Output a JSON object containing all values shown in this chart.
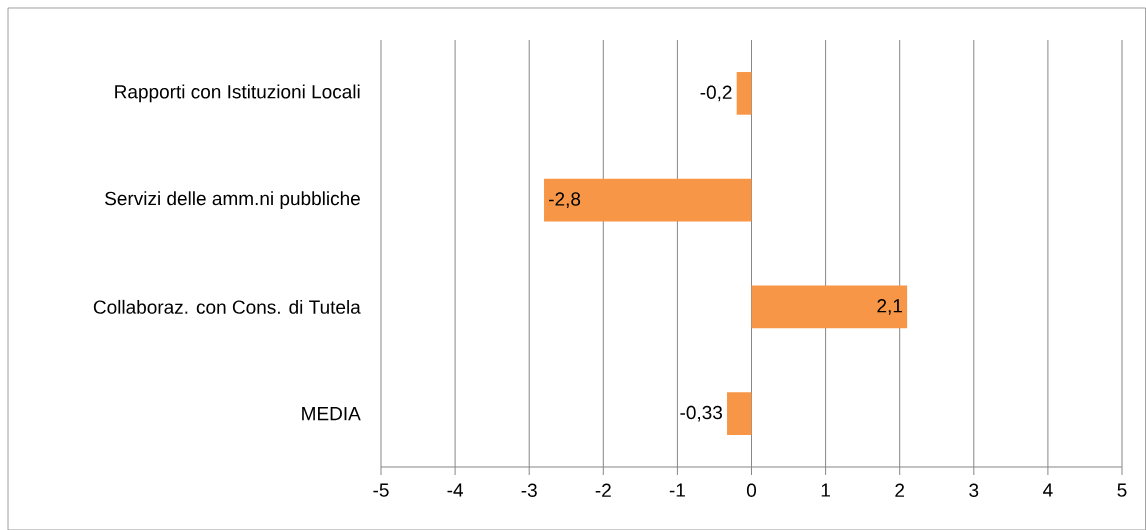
{
  "chart_data": {
    "type": "bar",
    "orientation": "horizontal",
    "categories": [
      "Rapporti con Istituzioni Locali",
      "Servizi delle amm.ni pubbliche",
      "Collaboraz. con Cons. di Tutela",
      "MEDIA"
    ],
    "values": [
      -0.2,
      -2.8,
      2.1,
      -0.33
    ],
    "value_labels": [
      "-0,2",
      "-2,8",
      "2,1",
      "-0,33"
    ],
    "color": "#f79646",
    "xlim": [
      -5,
      5
    ],
    "xticks": [
      -5,
      -4,
      -3,
      -2,
      -1,
      0,
      1,
      2,
      3,
      4,
      5
    ],
    "grid": "x"
  }
}
